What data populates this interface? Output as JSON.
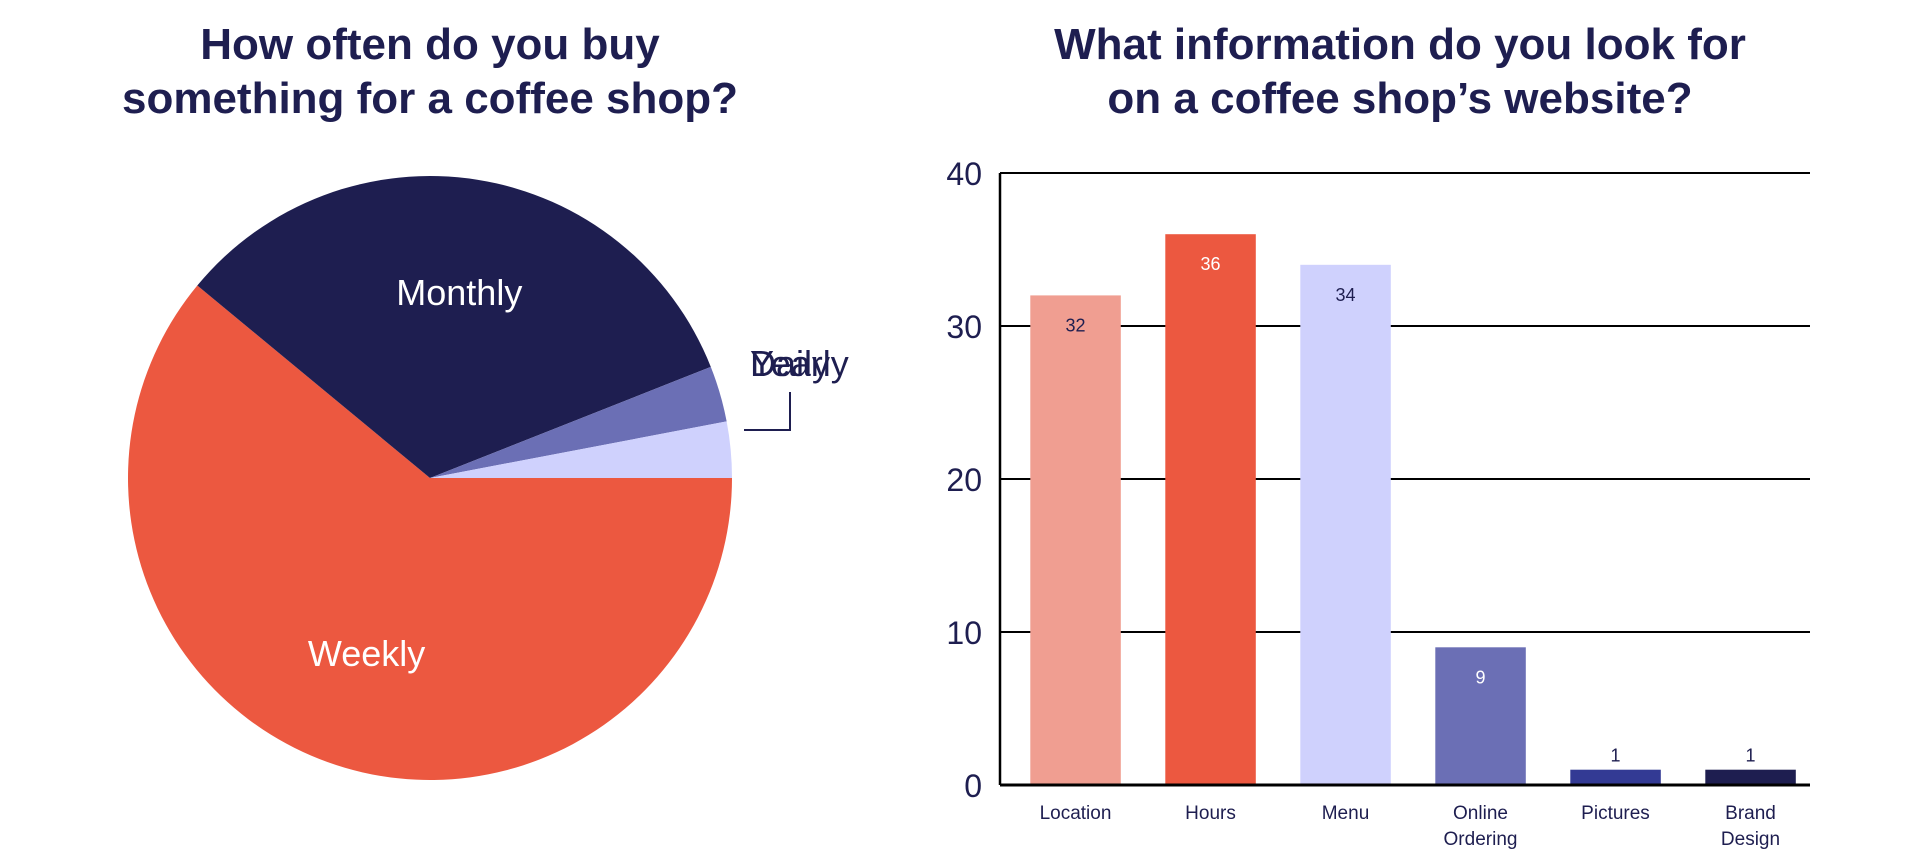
{
  "chart_data": [
    {
      "type": "pie",
      "title": [
        "How often do you buy",
        "something for a coffee shop?"
      ],
      "slices": [
        {
          "label": "Weekly",
          "value": 61,
          "color": "#ec5840"
        },
        {
          "label": "Monthly",
          "value": 33,
          "color": "#1e1e50"
        },
        {
          "label": "Yearly",
          "value": 3,
          "color": "#6b6fb5"
        },
        {
          "label": "Daily",
          "value": 3,
          "color": "#cfd1fd"
        }
      ]
    },
    {
      "type": "bar",
      "title": [
        "What information do you look for",
        "on a coffee shop’s website?"
      ],
      "categories": [
        "Location",
        "Hours",
        "Menu",
        "Online Ordering",
        "Pictures",
        "Brand Design"
      ],
      "category_lines": [
        [
          "Location"
        ],
        [
          "Hours"
        ],
        [
          "Menu"
        ],
        [
          "Online",
          "Ordering"
        ],
        [
          "Pictures"
        ],
        [
          "Brand",
          "Design"
        ]
      ],
      "values": [
        32,
        36,
        34,
        9,
        1,
        1
      ],
      "bar_colors": [
        "#f09e91",
        "#ec5840",
        "#cfd1fd",
        "#6b6fb5",
        "#333a94",
        "#1e1e50"
      ],
      "label_colors": [
        "#1e1e50",
        "#ffffff",
        "#1e1e50",
        "#ffffff",
        "#1e1e50",
        "#1e1e50"
      ],
      "ylim": [
        0,
        40
      ],
      "yticks": [
        "0",
        "10",
        "20",
        "30",
        "40"
      ],
      "grid": true
    }
  ]
}
